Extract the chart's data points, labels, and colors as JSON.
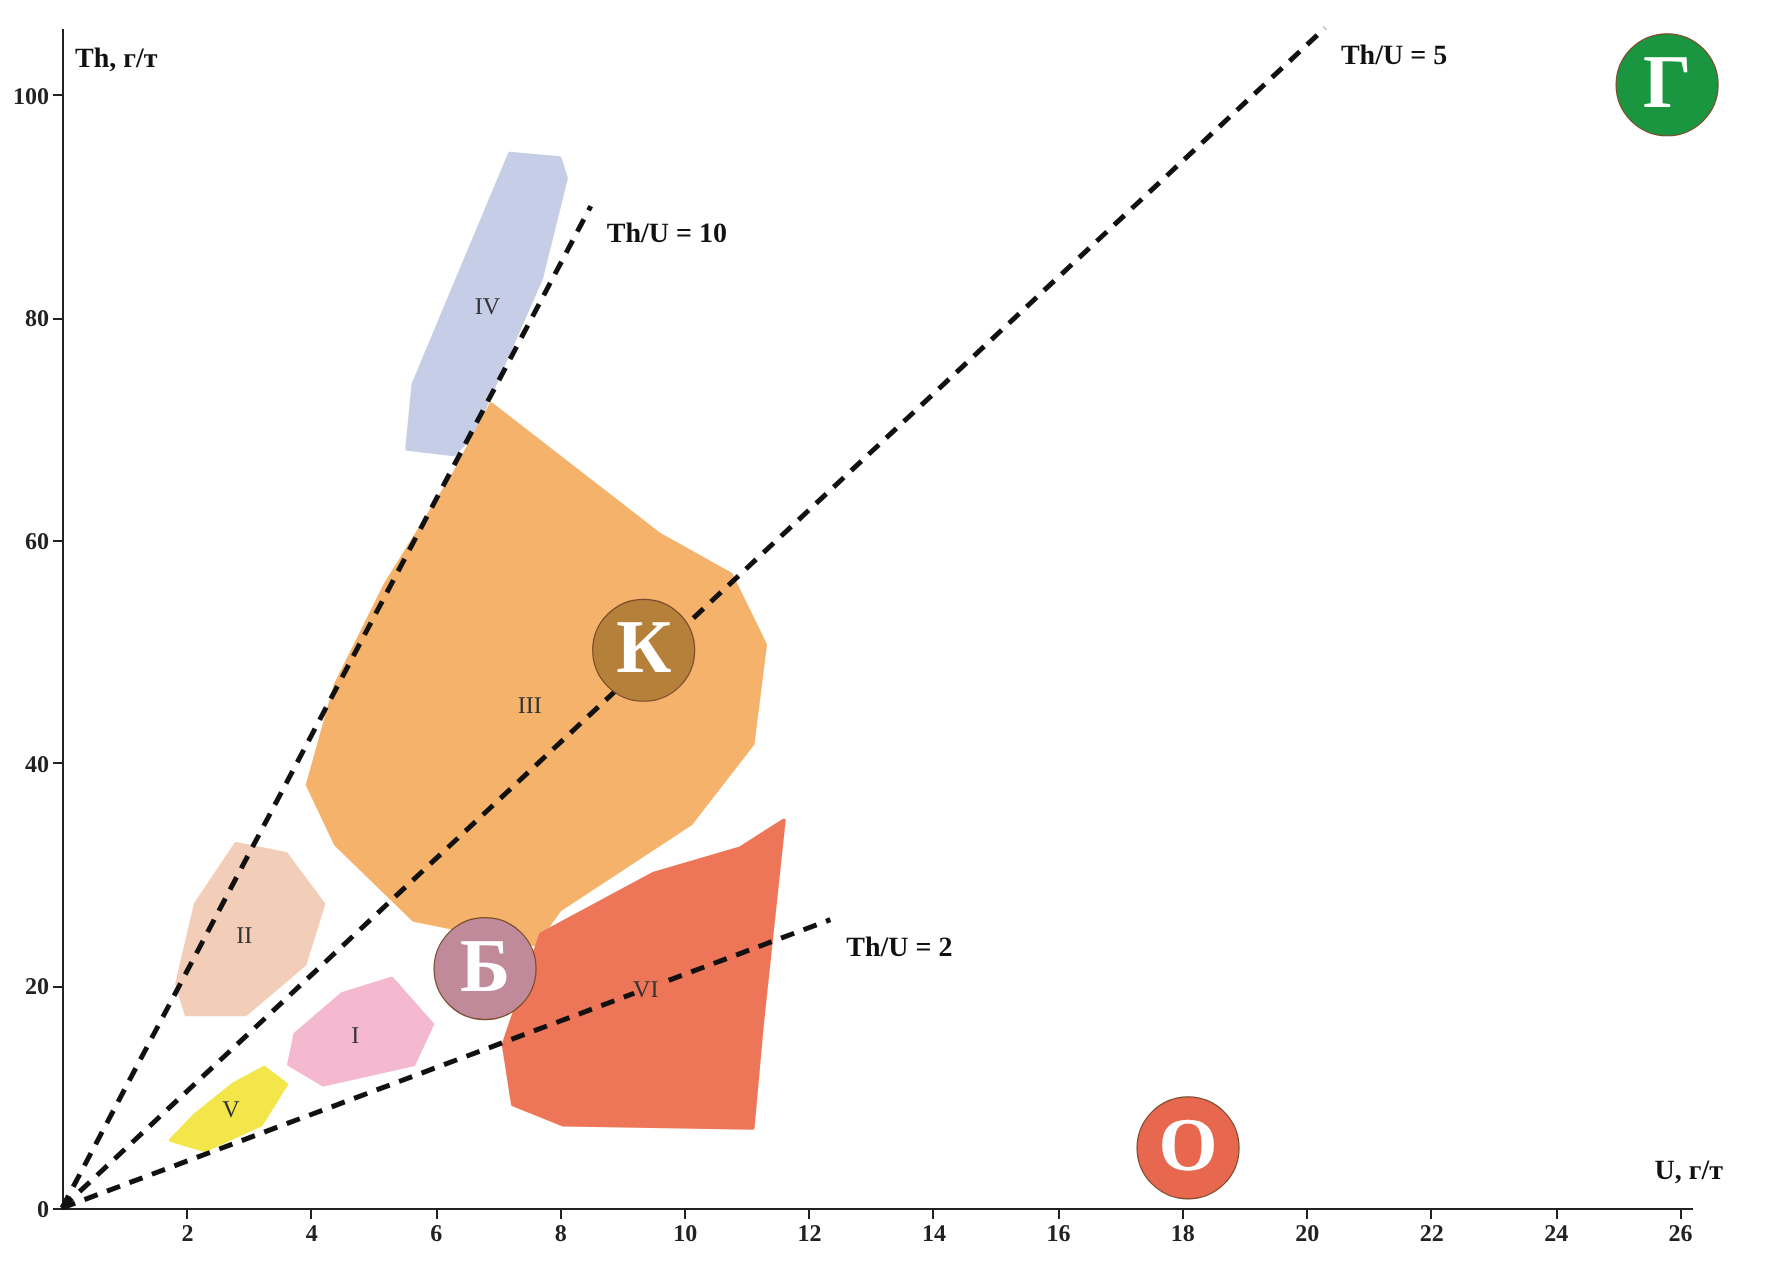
{
  "chart_data": {
    "type": "area",
    "xlabel": "U, г/т",
    "ylabel": "Th, г/т",
    "xlim": [
      0,
      26.2
    ],
    "ylim": [
      0,
      106
    ],
    "xticks": [
      2,
      4,
      6,
      8,
      10,
      12,
      14,
      16,
      18,
      20,
      22,
      24,
      26
    ],
    "yticks": [
      0,
      20,
      40,
      60,
      80,
      100
    ],
    "grid": false,
    "marker": "none",
    "series": [
      {
        "name": "IV",
        "color": "#c6cde6",
        "x": [
          7.2,
          8.0,
          8.1,
          7.7,
          6.6,
          6.3,
          5.55,
          5.65,
          6.45
        ],
        "values": [
          94.7,
          94.3,
          92.5,
          83.5,
          69.5,
          67.7,
          68.2,
          74,
          84.7
        ]
      },
      {
        "name": "III",
        "color": "#f5b26b",
        "x": [
          6.9,
          9.6,
          10.75,
          11.3,
          11.1,
          10.1,
          8.0,
          7.6,
          5.65,
          4.4,
          3.95,
          4.4,
          5.2,
          6.3
        ],
        "values": [
          72.2,
          60.5,
          56.9,
          50.6,
          41.7,
          34.5,
          26.8,
          23.7,
          25.9,
          32.7,
          38,
          47,
          56,
          65.9
        ]
      },
      {
        "name": "II",
        "color": "#f2cdb8",
        "x": [
          2.8,
          3.6,
          4.2,
          3.9,
          2.95,
          2.0,
          1.85,
          2.15
        ],
        "values": [
          32.7,
          31.8,
          27.3,
          21.9,
          17.4,
          17.4,
          20.1,
          27.3
        ]
      },
      {
        "name": "I",
        "color": "#f4b8cf",
        "x": [
          5.3,
          5.95,
          5.65,
          4.2,
          3.65,
          3.75,
          4.5
        ],
        "values": [
          20.6,
          16.5,
          12.9,
          11.1,
          12.9,
          15.6,
          19.2
        ]
      },
      {
        "name": "V",
        "color": "#f2e64a",
        "x": [
          3.25,
          3.6,
          3.2,
          2.3,
          1.75,
          2.15,
          2.75
        ],
        "values": [
          12.6,
          11.1,
          7.5,
          5.2,
          6.1,
          8.4,
          11.1
        ]
      },
      {
        "name": "VI",
        "color": "#ee7658",
        "x": [
          11.6,
          11.25,
          11.1,
          8.05,
          7.25,
          7.1,
          7.7,
          9.5,
          10.9
        ],
        "values": [
          34.8,
          16.5,
          7.2,
          7.5,
          9.3,
          14.7,
          24.6,
          30,
          32.3
        ]
      },
      {
        "name": "Th/U = 10",
        "type": "line",
        "line_style": "dashed",
        "color": "#111111",
        "x": [
          0,
          8.5
        ],
        "values": [
          0,
          90
        ]
      },
      {
        "name": "Th/U = 5",
        "type": "line",
        "line_style": "dashed",
        "color": "#111111",
        "x": [
          0,
          20.3
        ],
        "values": [
          0,
          106
        ]
      },
      {
        "name": "Th/U = 2",
        "type": "line",
        "line_style": "dashed",
        "color": "#111111",
        "x": [
          0,
          12.35
        ],
        "values": [
          0,
          25.9
        ]
      },
      {
        "name": "Г",
        "type": "scatter",
        "marker": "circle",
        "color": "#1a9641",
        "x": [
          25.8
        ],
        "values": [
          100.9
        ]
      },
      {
        "name": "К",
        "type": "scatter",
        "marker": "circle",
        "color": "#b5813a",
        "x": [
          9.35
        ],
        "values": [
          50.1
        ]
      },
      {
        "name": "Б",
        "type": "scatter",
        "marker": "circle",
        "color": "#c08a9a",
        "x": [
          6.8
        ],
        "values": [
          21.5
        ]
      },
      {
        "name": "О",
        "type": "scatter",
        "marker": "circle",
        "color": "#e8674f",
        "x": [
          18.1
        ],
        "values": [
          5.4
        ]
      }
    ]
  }
}
